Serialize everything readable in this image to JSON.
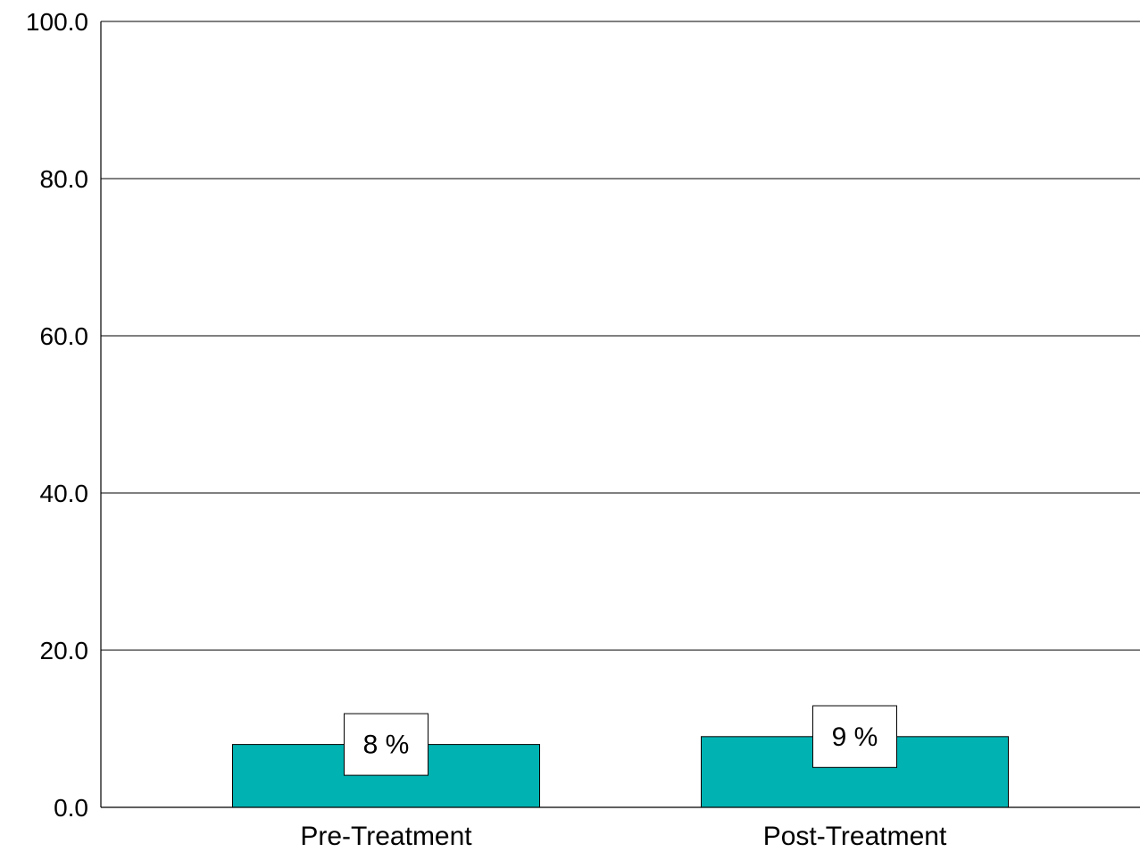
{
  "chart_data": {
    "type": "bar",
    "categories": [
      "Pre-Treatment",
      "Post-Treatment"
    ],
    "values": [
      8,
      9
    ],
    "data_labels": [
      "8 %",
      "9 %"
    ],
    "yticks": [
      "0.0",
      "20.0",
      "40.0",
      "60.0",
      "80.0",
      "100.0"
    ],
    "ylim": [
      0,
      100
    ],
    "grid": true,
    "bar_color": "#00B2B2"
  }
}
